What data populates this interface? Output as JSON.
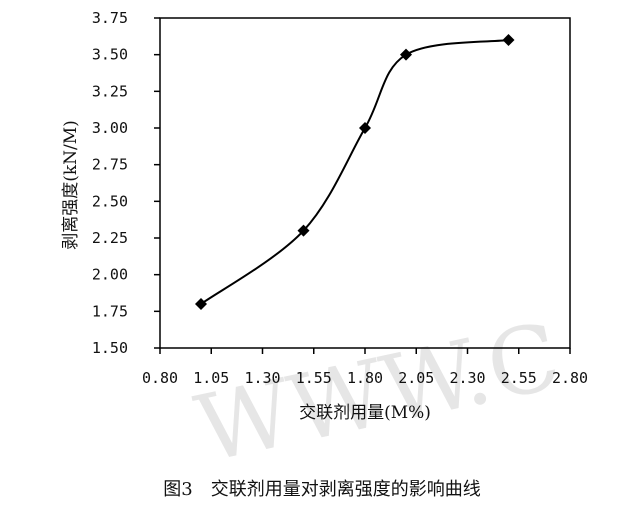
{
  "chart_data": {
    "type": "line",
    "title": "",
    "caption": "图3　交联剂用量对剥离强度的影响曲线",
    "xlabel": "交联剂用量(M%)",
    "ylabel": "剥离强度(kN/M)",
    "xlim": [
      0.8,
      2.8
    ],
    "ylim": [
      1.5,
      3.75
    ],
    "xticks": [
      "0.80",
      "1.05",
      "1.30",
      "1.55",
      "1.80",
      "2.05",
      "2.30",
      "2.55",
      "2.80"
    ],
    "yticks": [
      "1.50",
      "1.75",
      "2.00",
      "2.25",
      "2.50",
      "2.75",
      "3.00",
      "3.25",
      "3.50",
      "3.75"
    ],
    "grid": false,
    "legend": "none",
    "marker": "diamond",
    "series": [
      {
        "x": [
          1.0,
          1.5,
          1.8,
          2.0,
          2.5
        ],
        "y": [
          1.8,
          2.3,
          3.0,
          3.5,
          3.6
        ]
      }
    ],
    "watermark": "WWW.C",
    "colors": {
      "line": "#000000",
      "marker": "#000000",
      "axis": "#000000",
      "watermark": "#e6e6e6"
    }
  }
}
